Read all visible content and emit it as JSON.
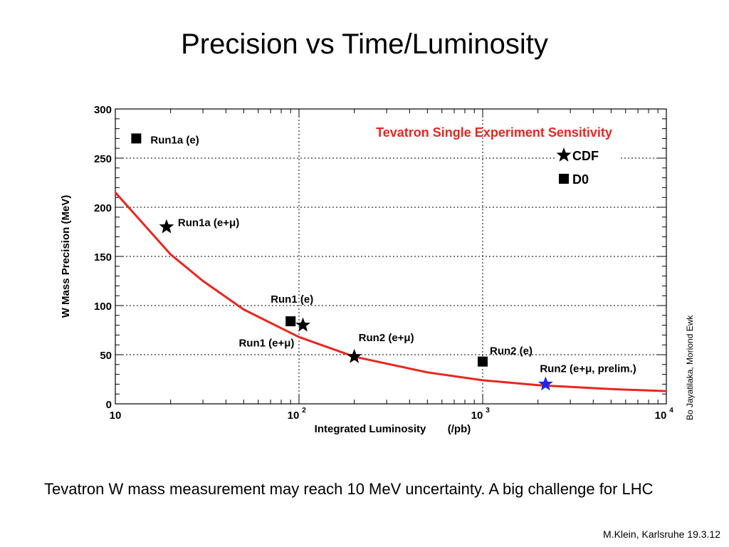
{
  "slide": {
    "title": "Precision vs Time/Luminosity",
    "caption": "Tevatron W mass measurement may reach 10 MeV uncertainty. A big challenge for LHC",
    "side_credit": "Bo Jayatilaka, Moriond Ewk",
    "footer": "M.Klein, Karlsruhe 19.3.12"
  },
  "chart_data": {
    "type": "scatter",
    "title": "Tevatron Single Experiment Sensitivity",
    "xlabel": "Integrated Luminosity",
    "xunit": "(/pb)",
    "ylabel": "W Mass Precision (MeV)",
    "xscale": "log",
    "xlim": [
      10,
      10000
    ],
    "ylim": [
      0,
      300
    ],
    "x_tick_labels": [
      {
        "value": 10,
        "label": "10"
      },
      {
        "value": 100,
        "base": "10",
        "exp": "2"
      },
      {
        "value": 1000,
        "base": "10",
        "exp": "3"
      },
      {
        "value": 10000,
        "base": "10",
        "exp": "4"
      }
    ],
    "y_ticks": [
      0,
      50,
      100,
      150,
      200,
      250,
      300
    ],
    "legend": {
      "position": "top-right",
      "entries": [
        {
          "label": "CDF",
          "marker": "star"
        },
        {
          "label": "D0",
          "marker": "square"
        }
      ]
    },
    "colors": {
      "curve": "#e8261f",
      "title": "#e8261f",
      "highlight_star": "#2222ee",
      "marker": "#000000"
    },
    "points": [
      {
        "label": "Run1a (e)",
        "experiment": "D0",
        "marker": "square",
        "x": 13,
        "y": 270
      },
      {
        "label": "Run1a (e+μ)",
        "experiment": "CDF",
        "marker": "star",
        "x": 19,
        "y": 180
      },
      {
        "label": "Run1 (e)",
        "experiment": "D0",
        "marker": "square",
        "x": 90,
        "y": 84
      },
      {
        "label": "Run1 (e+μ)",
        "experiment": "CDF",
        "marker": "star",
        "x": 105,
        "y": 80
      },
      {
        "label": "Run2 (e+μ)",
        "experiment": "CDF",
        "marker": "star",
        "x": 200,
        "y": 48
      },
      {
        "label": "Run2 (e)",
        "experiment": "D0",
        "marker": "square",
        "x": 1000,
        "y": 43
      },
      {
        "label": "Run2 (e+μ, prelim.)",
        "experiment": "CDF",
        "marker": "star",
        "x": 2200,
        "y": 20,
        "highlight": true
      }
    ],
    "trend_curve": {
      "x": [
        10,
        20,
        30,
        50,
        100,
        200,
        500,
        1000,
        2000,
        5000,
        10000
      ],
      "y": [
        215,
        152,
        125,
        96,
        68,
        48,
        32,
        24,
        19,
        15,
        13
      ]
    }
  }
}
